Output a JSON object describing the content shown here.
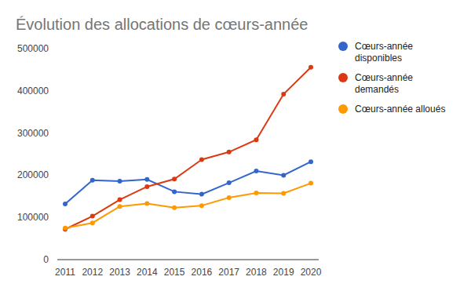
{
  "chart_data": {
    "type": "line",
    "title": "Évolution des allocations de cœurs-année",
    "categories": [
      2011,
      2012,
      2013,
      2014,
      2015,
      2016,
      2017,
      2018,
      2019,
      2020
    ],
    "series": [
      {
        "name": "Cœurs-année disponibles",
        "color": "#3366cc",
        "values": [
          132000,
          188000,
          186000,
          190000,
          161000,
          155000,
          182000,
          210000,
          200000,
          232000
        ]
      },
      {
        "name": "Cœurs-année demandés",
        "color": "#dc3912",
        "values": [
          72000,
          103000,
          142000,
          173000,
          191000,
          237000,
          255000,
          284000,
          392000,
          456000
        ]
      },
      {
        "name": "Cœurs-année alloués",
        "color": "#ff9900",
        "values": [
          75000,
          87000,
          126000,
          133000,
          123000,
          128000,
          147000,
          158000,
          157000,
          181000
        ]
      }
    ],
    "ylim": [
      0,
      500000
    ],
    "yticks": [
      0,
      100000,
      200000,
      300000,
      400000,
      500000
    ],
    "grid": false,
    "legend": "right",
    "marker": "circle",
    "line_style": "solid"
  }
}
